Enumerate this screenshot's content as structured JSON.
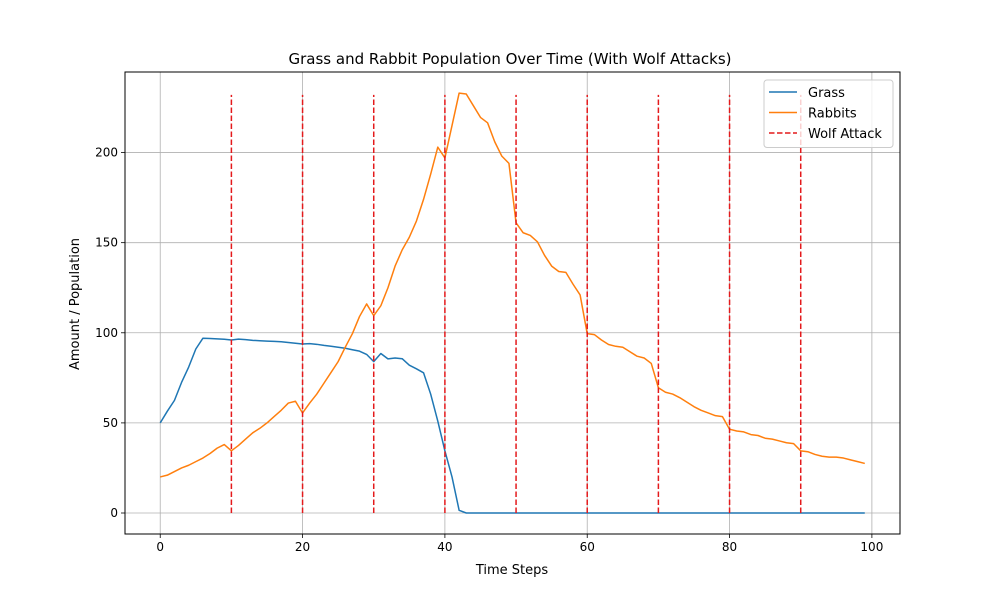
{
  "chart_data": {
    "type": "line",
    "title": "Grass and Rabbit Population Over Time (With Wolf Attacks)",
    "xlabel": "Time Steps",
    "ylabel": "Amount / Population",
    "xlim": [
      -4.95,
      103.95
    ],
    "ylim": [
      -11.65,
      244.7
    ],
    "xticks": [
      0,
      20,
      40,
      60,
      80,
      100
    ],
    "yticks": [
      0,
      50,
      100,
      150,
      200
    ],
    "grid": true,
    "legend_position": "top-right",
    "series": [
      {
        "name": "Grass",
        "color": "#1f77b4",
        "style": "solid",
        "x": [
          0,
          1,
          2,
          3,
          4,
          5,
          6,
          7,
          8,
          9,
          10,
          11,
          12,
          13,
          14,
          15,
          16,
          17,
          18,
          19,
          20,
          21,
          22,
          23,
          24,
          25,
          26,
          27,
          28,
          29,
          30,
          31,
          32,
          33,
          34,
          35,
          36,
          37,
          38,
          39,
          40,
          41,
          42,
          43,
          44,
          45,
          46,
          47,
          48,
          49,
          50,
          51,
          52,
          53,
          54,
          55,
          56,
          57,
          58,
          59,
          60,
          61,
          62,
          63,
          64,
          65,
          66,
          67,
          68,
          69,
          70,
          71,
          72,
          73,
          74,
          75,
          76,
          77,
          78,
          79,
          80,
          81,
          82,
          83,
          84,
          85,
          86,
          87,
          88,
          89,
          90,
          91,
          92,
          93,
          94,
          95,
          96,
          97,
          98,
          99
        ],
        "y": [
          50,
          56.5,
          62.5,
          72.5,
          81,
          91,
          97,
          96.8,
          96.6,
          96.4,
          96,
          96.5,
          96.2,
          95.8,
          95.6,
          95.4,
          95.2,
          95,
          94.6,
          94.2,
          93.8,
          94,
          93.6,
          93,
          92.5,
          92,
          91.4,
          90.6,
          89.8,
          88,
          84,
          88.5,
          85.5,
          86,
          85.6,
          82,
          80,
          77.8,
          66,
          51,
          34.5,
          20,
          1.5,
          0,
          0,
          0,
          0,
          0,
          0,
          0,
          0,
          0,
          0,
          0,
          0,
          0,
          0,
          0,
          0,
          0,
          0,
          0,
          0,
          0,
          0,
          0,
          0,
          0,
          0,
          0,
          0,
          0,
          0,
          0,
          0,
          0,
          0,
          0,
          0,
          0,
          0,
          0,
          0,
          0,
          0,
          0,
          0,
          0,
          0,
          0,
          0,
          0,
          0,
          0,
          0,
          0,
          0,
          0,
          0,
          0
        ]
      },
      {
        "name": "Rabbits",
        "color": "#ff7f0e",
        "style": "solid",
        "x": [
          0,
          1,
          2,
          3,
          4,
          5,
          6,
          7,
          8,
          9,
          10,
          11,
          12,
          13,
          14,
          15,
          16,
          17,
          18,
          19,
          20,
          21,
          22,
          23,
          24,
          25,
          26,
          27,
          28,
          29,
          30,
          31,
          32,
          33,
          34,
          35,
          36,
          37,
          38,
          39,
          40,
          41,
          42,
          43,
          44,
          45,
          46,
          47,
          48,
          49,
          50,
          51,
          52,
          53,
          54,
          55,
          56,
          57,
          58,
          59,
          60,
          61,
          62,
          63,
          64,
          65,
          66,
          67,
          68,
          69,
          70,
          71,
          72,
          73,
          74,
          75,
          76,
          77,
          78,
          79,
          80,
          81,
          82,
          83,
          84,
          85,
          86,
          87,
          88,
          89,
          90,
          91,
          92,
          93,
          94,
          95,
          96,
          97,
          98,
          99
        ],
        "y": [
          20,
          21,
          23,
          25,
          26.5,
          28.5,
          30.5,
          33,
          36,
          38,
          34.5,
          37.5,
          41,
          44.5,
          47,
          50,
          53.5,
          57,
          61,
          62,
          55.5,
          61,
          66,
          72,
          78,
          84,
          92,
          99.5,
          109,
          116,
          109.5,
          115,
          125,
          137,
          146,
          153,
          162,
          174,
          188,
          203,
          197,
          215,
          233,
          232.5,
          226,
          219.5,
          216.5,
          206,
          198,
          194,
          161,
          155.5,
          154,
          150.5,
          143,
          137,
          134,
          133.5,
          127,
          121,
          99.5,
          99,
          96,
          93.5,
          92.5,
          92,
          89.5,
          87,
          86,
          83,
          69.5,
          67,
          66,
          64,
          61.5,
          59,
          57,
          55.5,
          54,
          53.5,
          46.5,
          45.5,
          45,
          43.5,
          43,
          41.5,
          41,
          40,
          39,
          38.5,
          34.5,
          34,
          32.5,
          31.5,
          31,
          31,
          30.5,
          29.5,
          28.5,
          27.5
        ]
      }
    ],
    "vlines": {
      "name": "Wolf Attack",
      "color": "#e41a1c",
      "style": "dashed",
      "x": [
        10,
        20,
        30,
        40,
        50,
        60,
        70,
        80,
        90
      ],
      "ymin": 0,
      "ymax": 232
    }
  }
}
